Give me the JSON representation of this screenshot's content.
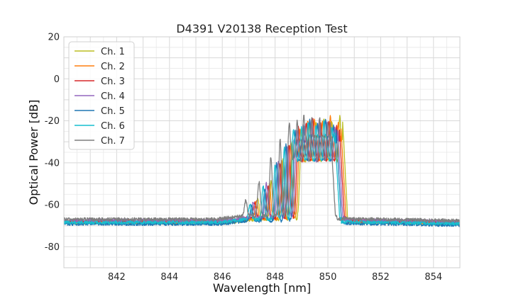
{
  "chart_data": {
    "type": "line",
    "title": "D4391 V20138 Reception Test",
    "xlabel": "Wavelength [nm]",
    "ylabel": "Optical Power [dB]",
    "xlim": [
      840.0,
      855.0
    ],
    "ylim": [
      -90,
      20
    ],
    "x_ticks": [
      842,
      844,
      846,
      848,
      850,
      852,
      854
    ],
    "y_ticks": [
      -80,
      -60,
      -40,
      -20,
      0,
      20
    ],
    "grid": true,
    "legend_position": "top-left",
    "series": [
      {
        "name": "Ch. 1",
        "color": "#bcbd22",
        "shift": 0.2,
        "offset": -1.0,
        "peaks": [
          -57,
          -49,
          -38,
          -30,
          -25,
          -21,
          -21,
          -19,
          -20,
          -18
        ]
      },
      {
        "name": "Ch. 2",
        "color": "#ff7f0e",
        "shift": 0.14,
        "offset": -0.6,
        "peaks": [
          -58,
          -50,
          -39,
          -31,
          -24,
          -20,
          -19,
          -20,
          -18,
          -21
        ]
      },
      {
        "name": "Ch. 3",
        "color": "#d62728",
        "shift": 0.08,
        "offset": -0.3,
        "peaks": [
          -59,
          -51,
          -40,
          -31,
          -23,
          -21,
          -19,
          -21,
          -20,
          -22
        ]
      },
      {
        "name": "Ch. 4",
        "color": "#9467bd",
        "shift": 0.02,
        "offset": 0.0,
        "peaks": [
          -59,
          -50,
          -39,
          -32,
          -24,
          -22,
          -20,
          -20,
          -21,
          -23
        ]
      },
      {
        "name": "Ch. 5",
        "color": "#1f77b4",
        "shift": -0.04,
        "offset": -1.6,
        "peaks": [
          -60,
          -52,
          -40,
          -31,
          -25,
          -22,
          -19,
          -21,
          -19,
          -22
        ]
      },
      {
        "name": "Ch. 6",
        "color": "#17becf",
        "shift": -0.1,
        "offset": -0.9,
        "peaks": [
          -60,
          -51,
          -41,
          -33,
          -24,
          -23,
          -21,
          -22,
          -20,
          -23
        ]
      },
      {
        "name": "Ch. 7",
        "color": "#7f7f7f",
        "shift": -0.26,
        "offset": 0.6,
        "peaks": [
          -58,
          -49,
          -37,
          -29,
          -21,
          -20,
          -17,
          -19,
          -19,
          -21
        ]
      }
    ]
  }
}
